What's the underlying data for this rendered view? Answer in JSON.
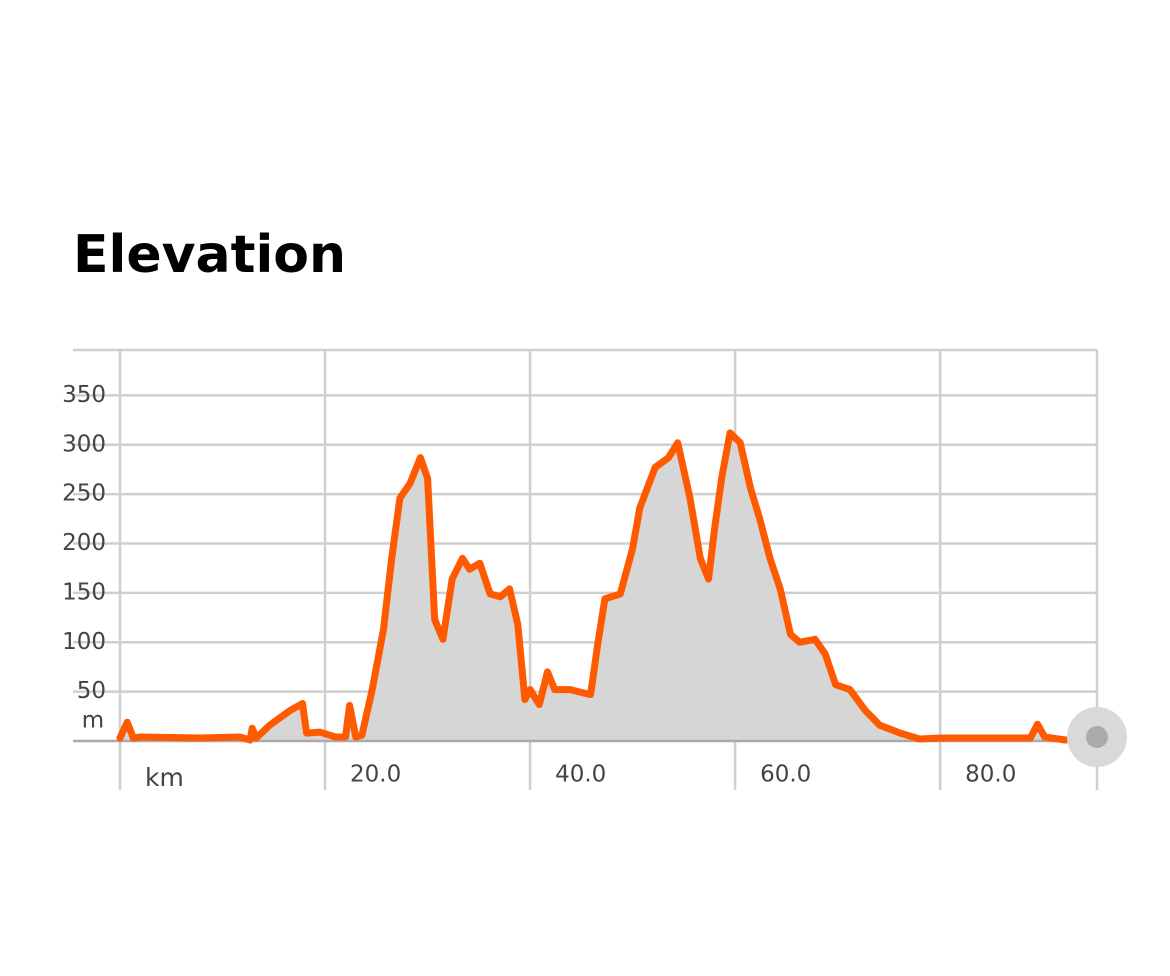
{
  "chart_data": {
    "type": "area",
    "title": "Elevation",
    "y_unit": "m",
    "x_unit": "km",
    "line_color": "#ff5a00",
    "fill_color": "#d6d6d6",
    "grid": true,
    "xlim": [
      0,
      95.3
    ],
    "ylim": [
      0,
      400
    ],
    "xticks": [
      {
        "value": 20,
        "label": "20.0"
      },
      {
        "value": 40,
        "label": "40.0"
      },
      {
        "value": 60,
        "label": "60.0"
      },
      {
        "value": 80,
        "label": "80.0"
      }
    ],
    "yticks": [
      50,
      100,
      150,
      200,
      250,
      300,
      350
    ],
    "x": [
      0,
      0.7,
      1.3,
      2,
      7.8,
      11.7,
      12.7,
      12.9,
      13.3,
      14.6,
      16.6,
      17.8,
      18.2,
      19.5,
      21,
      22,
      22.4,
      23,
      23.6,
      24.6,
      25.7,
      26.5,
      27.3,
      28.3,
      29.3,
      30,
      30.7,
      31.5,
      32.4,
      33.4,
      34.1,
      35.1,
      36.1,
      37.1,
      38,
      38.8,
      39.5,
      40,
      40.9,
      41.7,
      42.4,
      43.9,
      45.9,
      46.6,
      47.3,
      48.8,
      50,
      50.7,
      52.2,
      53.5,
      54.4,
      55.6,
      56.6,
      57.4,
      58,
      58.7,
      59.5,
      60.5,
      61.5,
      62.4,
      63.4,
      64.4,
      65.4,
      66.3,
      67.8,
      68.8,
      69.8,
      71.2,
      72.7,
      74.1,
      76.1,
      78,
      80,
      84.9,
      88.8,
      89.5,
      90.2,
      92.2,
      95.3
    ],
    "values": [
      3,
      19,
      3,
      4,
      3,
      4,
      1,
      13,
      3,
      16,
      31,
      38,
      8,
      9,
      4,
      4,
      36,
      4,
      6,
      52,
      113,
      185,
      246,
      261,
      287,
      266,
      123,
      103,
      164,
      185,
      174,
      180,
      149,
      146,
      154,
      118,
      42,
      52,
      37,
      70,
      52,
      52,
      47,
      98,
      144,
      149,
      195,
      236,
      277,
      287,
      302,
      246,
      185,
      164,
      215,
      267,
      312,
      302,
      256,
      225,
      185,
      154,
      108,
      100,
      103,
      88,
      57,
      52,
      31,
      16,
      8,
      2,
      3,
      3,
      3,
      17,
      4,
      1,
      4
    ]
  }
}
